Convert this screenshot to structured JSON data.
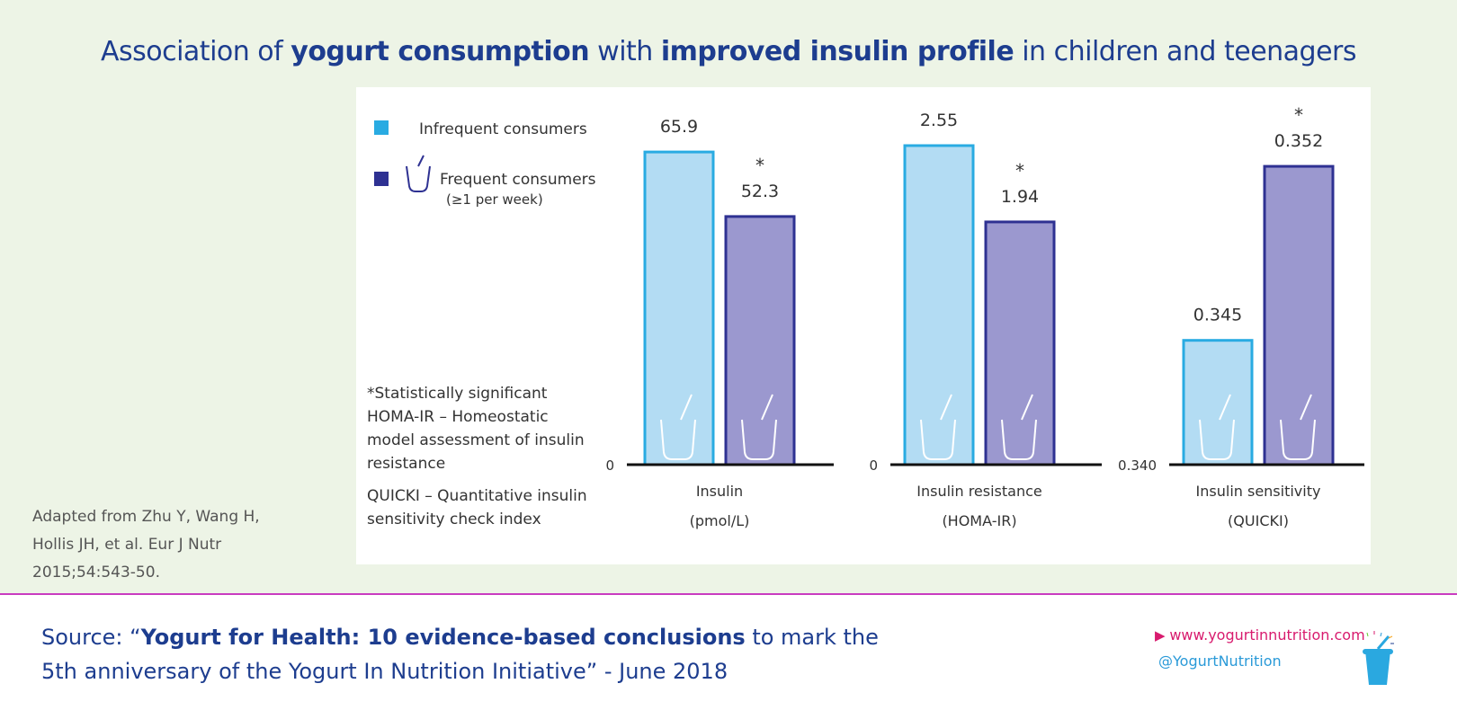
{
  "title": {
    "pre": "Association of ",
    "b1": "yogurt consumption",
    "mid": " with ",
    "b2": "improved insulin profile",
    "post": " in children and teenagers"
  },
  "citation": [
    "Adapted from Zhu Y, Wang H,",
    "Hollis JH, et al. Eur J Nutr",
    "2015;54:543-50."
  ],
  "footnotes": [
    "*Statistically significant",
    "HOMA-IR – Homeostatic",
    "model assessment of insulin",
    "resistance",
    "QUICKI – Quantitative insulin",
    "sensitivity check index"
  ],
  "source": {
    "pre": "Source: “",
    "bold": "Yogurt for Health: 10 evidence-based conclusions",
    "post": " to mark the",
    "line2": "5th anniversary of the Yogurt In Nutrition Initiative” - June 2018"
  },
  "footer": {
    "website": "www.yogurtinnutrition.com",
    "handle": "@YogurtNutrition"
  },
  "colors": {
    "infrequent": "#b3dcf3",
    "infrequent_border": "#29abe2",
    "frequent": "#9b98cf",
    "frequent_border": "#2e3192",
    "title": "#1d3d8f",
    "rule": "#c93cc0"
  },
  "chart_data": {
    "type": "bar",
    "legend": {
      "placement": "top-left",
      "entries": [
        "Infrequent consumers",
        "Frequent consumers",
        "(≥1 per week)"
      ]
    },
    "groups": [
      {
        "label": "Insulin",
        "unit": "(pmol/L)",
        "baseline": 0,
        "baseline_label": "0",
        "values": [
          65.9,
          52.3
        ],
        "labels": [
          "65.9",
          "52.3"
        ],
        "significant": [
          false,
          true
        ]
      },
      {
        "label": "Insulin resistance",
        "unit": "(HOMA-IR)",
        "baseline": 0,
        "baseline_label": "0",
        "values": [
          2.55,
          1.94
        ],
        "labels": [
          "2.55",
          "1.94"
        ],
        "significant": [
          false,
          true
        ]
      },
      {
        "label": "Insulin sensitivity",
        "unit": "(QUICKI)",
        "baseline": 0.34,
        "baseline_label": "0.340",
        "values": [
          0.345,
          0.352
        ],
        "labels": [
          "0.345",
          "0.352"
        ],
        "significant": [
          false,
          true
        ]
      }
    ],
    "series": [
      {
        "name": "Infrequent consumers"
      },
      {
        "name": "Frequent consumers"
      }
    ],
    "significance_marker": "*"
  }
}
